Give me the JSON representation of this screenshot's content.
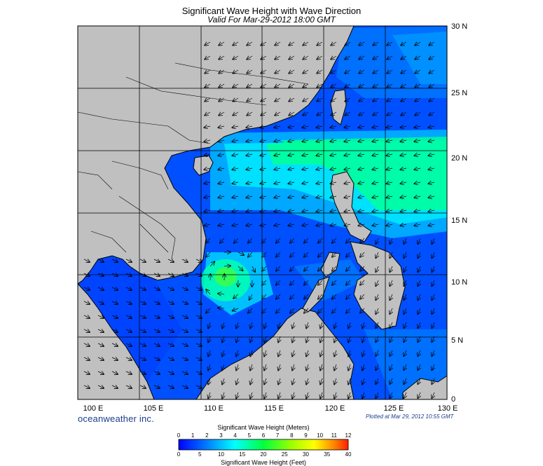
{
  "header": {
    "title": "Significant Wave Height with Wave Direction",
    "valid": "Valid For Mar-29-2012 18:00 GMT"
  },
  "map": {
    "lon_labels": [
      "100 E",
      "105 E",
      "110 E",
      "115 E",
      "120 E",
      "125 E",
      "130 E"
    ],
    "lat_labels": [
      "30 N",
      "25 N",
      "20 N",
      "15 N",
      "10 N",
      "5 N",
      "0"
    ],
    "lon_range": [
      100,
      130
    ],
    "lat_range": [
      0,
      30
    ],
    "land_color": "#c0c0c0",
    "grid": true
  },
  "footer": {
    "brand": "oceanweather inc.",
    "plotted": "Plotted at Mar 29, 2012 10:55 GMT"
  },
  "colorbar": {
    "title_meters": "Significant Wave Height (Meters)",
    "title_feet": "Significant Wave Height (Feet)",
    "meters_ticks": [
      "0",
      "1",
      "2",
      "3",
      "4",
      "5",
      "6",
      "7",
      "8",
      "9",
      "10",
      "11",
      "12"
    ],
    "feet_ticks": [
      "0",
      "5",
      "10",
      "15",
      "20",
      "25",
      "30",
      "35",
      "40"
    ],
    "colors": [
      "#0000ff",
      "#0044ff",
      "#0080ff",
      "#00c0ff",
      "#00ffff",
      "#00ff9a",
      "#00ff40",
      "#40ff00",
      "#a0ff00",
      "#ffff00",
      "#ffc000",
      "#ff8000",
      "#ff2000"
    ]
  }
}
